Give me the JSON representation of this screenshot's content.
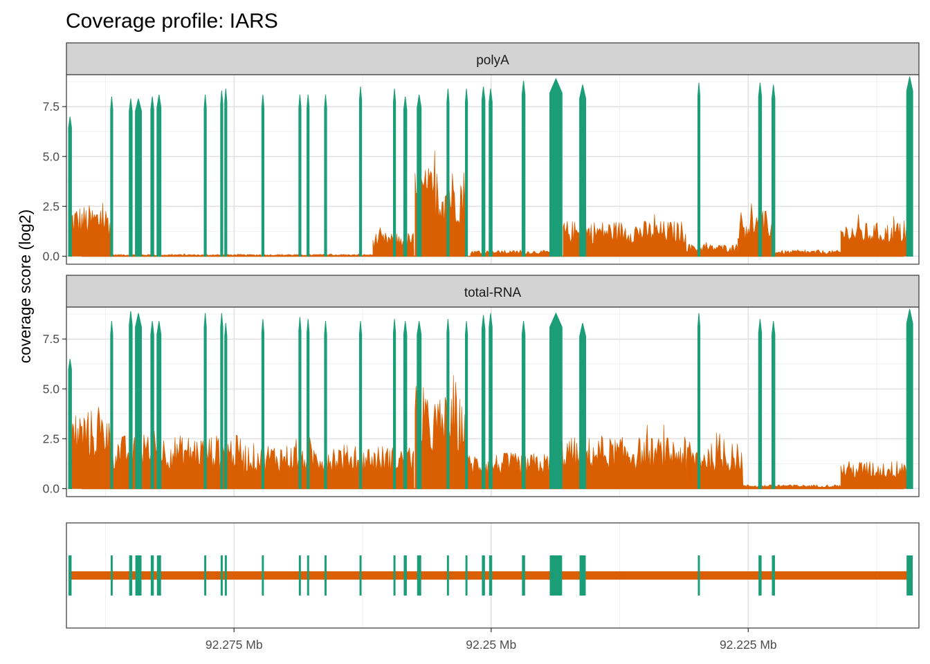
{
  "chart_data": {
    "type": "area",
    "title": "Coverage profile: IARS",
    "ylabel": "coverage score (log2)",
    "xlabel": "",
    "x_unit": "Mb",
    "x_reversed": true,
    "xlim": [
      92.2913,
      92.2084
    ],
    "x_ticks": [
      {
        "value": 92.275,
        "label": "92.275 Mb"
      },
      {
        "value": 92.25,
        "label": "92.25 Mb"
      },
      {
        "value": 92.225,
        "label": "92.225 Mb"
      }
    ],
    "ylim": [
      -0.4,
      9.1
    ],
    "y_ticks": [
      {
        "value": 0,
        "label": "0.0"
      },
      {
        "value": 2.5,
        "label": "2.5"
      },
      {
        "value": 5,
        "label": "5.0"
      },
      {
        "value": 7.5,
        "label": "7.5"
      }
    ],
    "grid": true,
    "colors": {
      "exon": "#1b9e77",
      "intron": "#d95f02",
      "strip": "#d3d3d3"
    },
    "panels": [
      {
        "name": "polyA",
        "exon_peaks": [
          7.0,
          8.0,
          7.9,
          7.9,
          8.0,
          8.1,
          8.1,
          8.3,
          8.4,
          8.1,
          8.1,
          8.1,
          8.1,
          8.5,
          8.4,
          8.0,
          8.1,
          8.4,
          8.4,
          8.5,
          8.4,
          8.8,
          8.9,
          8.6,
          8.7,
          8.7,
          8.6,
          9.0
        ],
        "intron_segments": [
          {
            "x1": 92.2909,
            "x2": 92.287,
            "level": 2.6
          },
          {
            "x1": 92.2868,
            "x2": 92.2615,
            "level": 0.1
          },
          {
            "x1": 92.2615,
            "x2": 92.2575,
            "level": 1.2
          },
          {
            "x1": 92.2574,
            "x2": 92.2525,
            "level": 4.5
          },
          {
            "x1": 92.252,
            "x2": 92.244,
            "level": 0.3
          },
          {
            "x1": 92.243,
            "x2": 92.231,
            "level": 1.8
          },
          {
            "x1": 92.231,
            "x2": 92.226,
            "level": 0.6
          },
          {
            "x1": 92.226,
            "x2": 92.2225,
            "level": 2.3
          },
          {
            "x1": 92.2225,
            "x2": 92.216,
            "level": 0.3
          },
          {
            "x1": 92.216,
            "x2": 92.2095,
            "level": 1.7
          }
        ]
      },
      {
        "name": "total-RNA",
        "exon_peaks": [
          6.5,
          8.4,
          8.9,
          8.8,
          8.4,
          8.4,
          8.8,
          8.8,
          8.3,
          8.5,
          8.6,
          8.5,
          8.4,
          8.4,
          8.5,
          8.4,
          8.4,
          8.5,
          8.4,
          8.7,
          8.8,
          8.4,
          8.8,
          8.3,
          8.8,
          8.5,
          8.4,
          9.0
        ],
        "intron_segments": [
          {
            "x1": 92.2909,
            "x2": 92.287,
            "level": 4.0
          },
          {
            "x1": 92.287,
            "x2": 92.274,
            "level": 2.7
          },
          {
            "x1": 92.274,
            "x2": 92.264,
            "level": 2.3
          },
          {
            "x1": 92.264,
            "x2": 92.2575,
            "level": 2.2
          },
          {
            "x1": 92.2574,
            "x2": 92.2525,
            "level": 4.6
          },
          {
            "x1": 92.2525,
            "x2": 92.244,
            "level": 1.8
          },
          {
            "x1": 92.244,
            "x2": 92.231,
            "level": 2.6
          },
          {
            "x1": 92.231,
            "x2": 92.2255,
            "level": 2.3
          },
          {
            "x1": 92.2255,
            "x2": 92.216,
            "level": 0.2
          },
          {
            "x1": 92.216,
            "x2": 92.2095,
            "level": 1.4
          }
        ]
      }
    ],
    "exons": [
      {
        "start": 92.2911,
        "end": 92.2908
      },
      {
        "start": 92.287,
        "end": 92.2868
      },
      {
        "start": 92.2852,
        "end": 92.2849
      },
      {
        "start": 92.2846,
        "end": 92.284
      },
      {
        "start": 92.2831,
        "end": 92.2828
      },
      {
        "start": 92.2825,
        "end": 92.2821
      },
      {
        "start": 92.2779,
        "end": 92.2777
      },
      {
        "start": 92.2763,
        "end": 92.2761
      },
      {
        "start": 92.2759,
        "end": 92.2757
      },
      {
        "start": 92.2723,
        "end": 92.2721
      },
      {
        "start": 92.2687,
        "end": 92.2685
      },
      {
        "start": 92.2679,
        "end": 92.2677
      },
      {
        "start": 92.2662,
        "end": 92.266
      },
      {
        "start": 92.2628,
        "end": 92.2626
      },
      {
        "start": 92.2595,
        "end": 92.2593
      },
      {
        "start": 92.2585,
        "end": 92.2582
      },
      {
        "start": 92.2572,
        "end": 92.2568
      },
      {
        "start": 92.2543,
        "end": 92.2541
      },
      {
        "start": 92.2525,
        "end": 92.2523
      },
      {
        "start": 92.2509,
        "end": 92.2506
      },
      {
        "start": 92.2502,
        "end": 92.2499
      },
      {
        "start": 92.247,
        "end": 92.2467
      },
      {
        "start": 92.2443,
        "end": 92.2431
      },
      {
        "start": 92.2414,
        "end": 92.2408
      },
      {
        "start": 92.2299,
        "end": 92.2297
      },
      {
        "start": 92.224,
        "end": 92.2237
      },
      {
        "start": 92.2227,
        "end": 92.2224
      },
      {
        "start": 92.2096,
        "end": 92.209
      }
    ]
  }
}
